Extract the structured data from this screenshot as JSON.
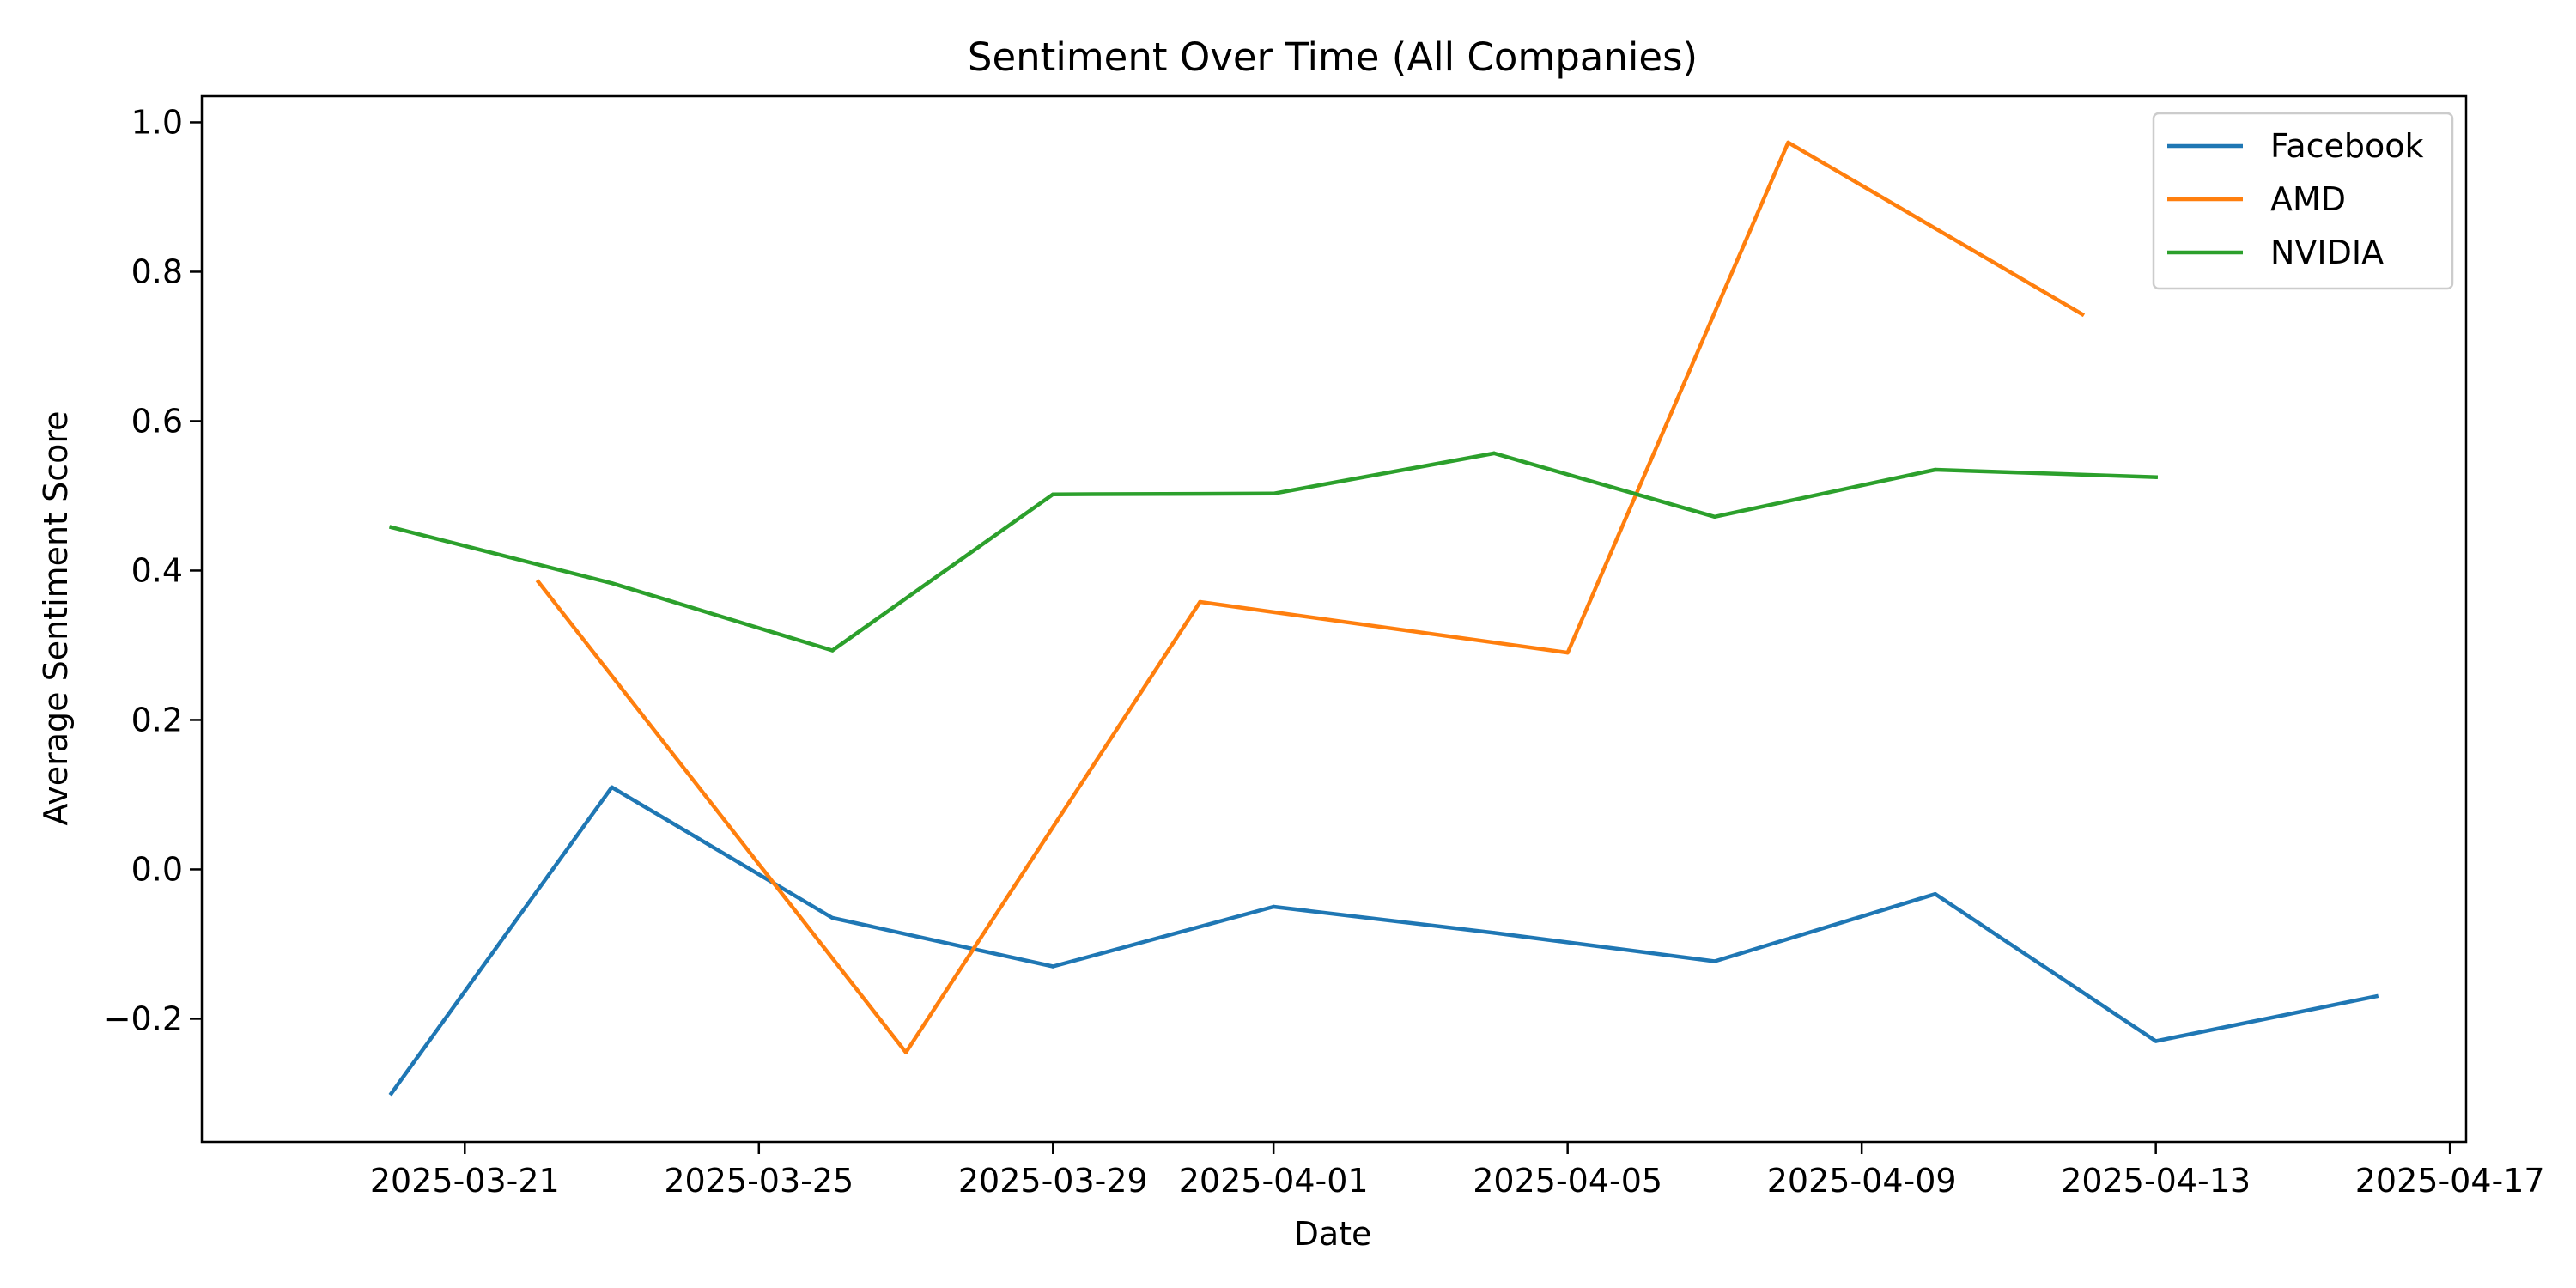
{
  "chart_data": {
    "type": "line",
    "title": "Sentiment Over Time (All Companies)",
    "xlabel": "Date",
    "ylabel": "Average Sentiment Score",
    "x_tick_labels": [
      "2025-03-21",
      "2025-03-25",
      "2025-03-29",
      "2025-04-01",
      "2025-04-05",
      "2025-04-09",
      "2025-04-13",
      "2025-04-17"
    ],
    "y_tick_labels": [
      "−0.2",
      "0.0",
      "0.2",
      "0.4",
      "0.6",
      "0.8",
      "1.0"
    ],
    "y_ticks": [
      -0.2,
      0.0,
      0.2,
      0.4,
      0.6,
      0.8,
      1.0
    ],
    "x_range": [
      "2025-03-18",
      "2025-04-17"
    ],
    "ylim": [
      -0.365,
      1.035
    ],
    "grid": false,
    "legend_position": "top-right",
    "series": [
      {
        "name": "Facebook",
        "color": "#1f77b4",
        "points": [
          {
            "x": "2025-03-20",
            "y": -0.3
          },
          {
            "x": "2025-03-23",
            "y": 0.11
          },
          {
            "x": "2025-03-26",
            "y": -0.065
          },
          {
            "x": "2025-03-29",
            "y": -0.13
          },
          {
            "x": "2025-04-01",
            "y": -0.05
          },
          {
            "x": "2025-04-04",
            "y": -0.085
          },
          {
            "x": "2025-04-07",
            "y": -0.123
          },
          {
            "x": "2025-04-10",
            "y": -0.033
          },
          {
            "x": "2025-04-13",
            "y": -0.23
          },
          {
            "x": "2025-04-16",
            "y": -0.17
          }
        ]
      },
      {
        "name": "AMD",
        "color": "#ff7f0e",
        "points": [
          {
            "x": "2025-03-22",
            "y": 0.385
          },
          {
            "x": "2025-03-27",
            "y": -0.245
          },
          {
            "x": "2025-03-31",
            "y": 0.358
          },
          {
            "x": "2025-04-05",
            "y": 0.29
          },
          {
            "x": "2025-04-08",
            "y": 0.973
          },
          {
            "x": "2025-04-12",
            "y": 0.743
          }
        ]
      },
      {
        "name": "NVIDIA",
        "color": "#2ca02c",
        "points": [
          {
            "x": "2025-03-20",
            "y": 0.458
          },
          {
            "x": "2025-03-23",
            "y": 0.383
          },
          {
            "x": "2025-03-26",
            "y": 0.293
          },
          {
            "x": "2025-03-29",
            "y": 0.502
          },
          {
            "x": "2025-04-01",
            "y": 0.503
          },
          {
            "x": "2025-04-04",
            "y": 0.557
          },
          {
            "x": "2025-04-07",
            "y": 0.472
          },
          {
            "x": "2025-04-10",
            "y": 0.535
          },
          {
            "x": "2025-04-13",
            "y": 0.525
          }
        ]
      }
    ]
  }
}
